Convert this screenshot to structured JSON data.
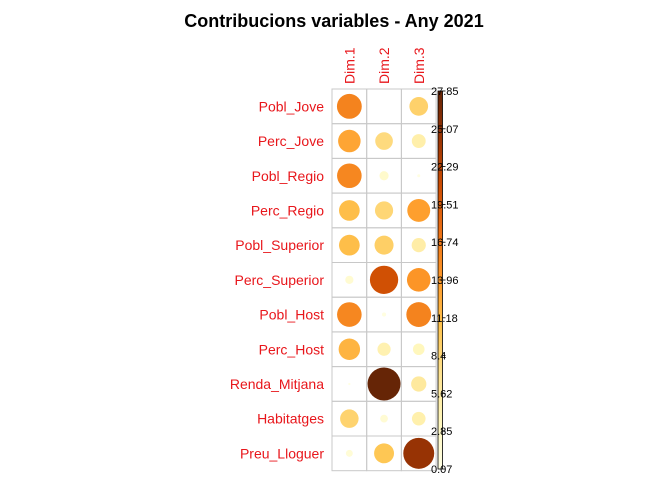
{
  "chart_data": {
    "type": "heatmap",
    "title": "Contribucions variables - Any 2021",
    "columns": [
      "Dim.1",
      "Dim.2",
      "Dim.3"
    ],
    "rows": [
      "Pobl_Jove",
      "Perc_Jove",
      "Pobl_Regio",
      "Perc_Regio",
      "Pobl_Superior",
      "Perc_Superior",
      "Pobl_Host",
      "Perc_Host",
      "Renda_Mitjana",
      "Habitatges",
      "Preu_Lloguer"
    ],
    "values": [
      [
        15.8,
        0.07,
        9.0
      ],
      [
        13.0,
        8.0,
        5.0
      ],
      [
        15.5,
        2.2,
        0.3
      ],
      [
        11.0,
        8.5,
        13.5
      ],
      [
        11.0,
        9.3,
        5.2
      ],
      [
        1.8,
        20.5,
        14.3
      ],
      [
        15.5,
        0.5,
        15.8
      ],
      [
        11.8,
        4.5,
        3.5
      ],
      [
        0.2,
        27.85,
        6.0
      ],
      [
        8.8,
        1.6,
        4.8
      ],
      [
        1.3,
        10.2,
        24.5
      ]
    ],
    "color_scale": {
      "min": 0.07,
      "max": 27.85,
      "ticks": [
        "0.07",
        "2.85",
        "5.62",
        "8.4",
        "11.18",
        "13.96",
        "16.74",
        "19.51",
        "22.29",
        "25.07",
        "27.85"
      ],
      "colors": [
        "#ffffe5",
        "#fff7bc",
        "#fee391",
        "#fec44f",
        "#fe9929",
        "#ec7014",
        "#cc4c02",
        "#993404",
        "#662506"
      ]
    },
    "marker": "circle",
    "grid": true,
    "legend_position": "right"
  }
}
